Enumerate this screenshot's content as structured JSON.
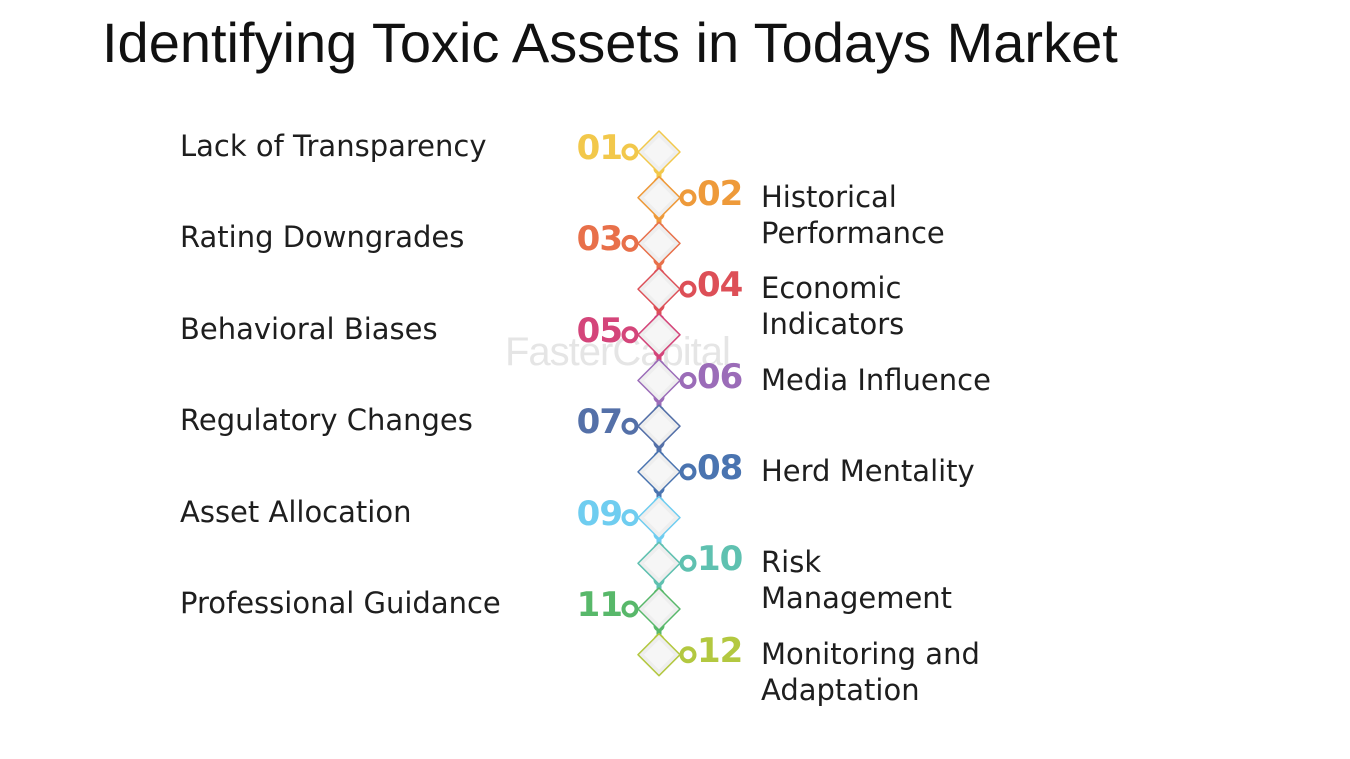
{
  "title": "Identifying Toxic Assets in Todays Market",
  "watermark": "FasterCapital",
  "steps": [
    {
      "num": "01",
      "label": "Lack of Transparency",
      "side": "left",
      "color": "#f2c84b"
    },
    {
      "num": "02",
      "label": "Historical Performance",
      "side": "right",
      "color": "#ee9a3a"
    },
    {
      "num": "03",
      "label": "Rating Downgrades",
      "side": "left",
      "color": "#e8704a"
    },
    {
      "num": "04",
      "label": "Economic Indicators",
      "side": "right",
      "color": "#dd4f57"
    },
    {
      "num": "05",
      "label": "Behavioral Biases",
      "side": "left",
      "color": "#d4457a"
    },
    {
      "num": "06",
      "label": "Media Influence",
      "side": "right",
      "color": "#9b6cb8"
    },
    {
      "num": "07",
      "label": "Regulatory Changes",
      "side": "left",
      "color": "#5470a8"
    },
    {
      "num": "08",
      "label": "Herd Mentality",
      "side": "right",
      "color": "#4a74b0"
    },
    {
      "num": "09",
      "label": "Asset Allocation",
      "side": "left",
      "color": "#6fcdf0"
    },
    {
      "num": "10",
      "label": "Risk Management",
      "side": "right",
      "color": "#5fc1b0"
    },
    {
      "num": "11",
      "label": "Professional Guidance",
      "side": "left",
      "color": "#58b86a"
    },
    {
      "num": "12",
      "label": "Monitoring and Adaptation",
      "side": "right",
      "color": "#b3c840"
    }
  ]
}
